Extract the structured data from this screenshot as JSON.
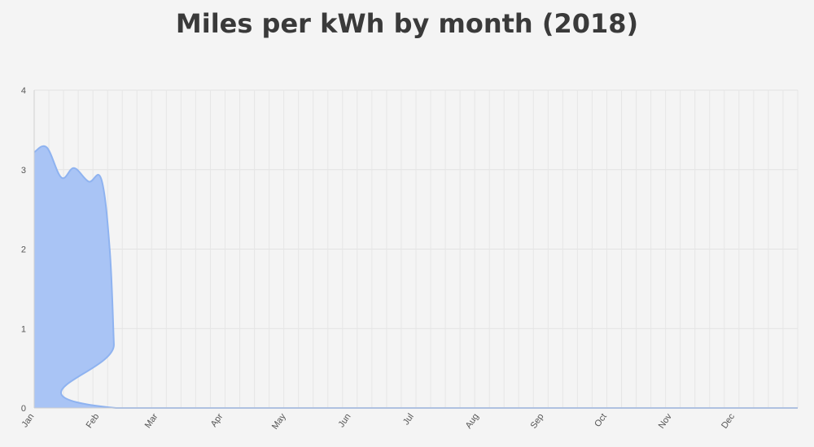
{
  "chart_data": {
    "type": "area",
    "title": "Miles per kWh by month (2018)",
    "xlabel": "",
    "ylabel": "",
    "ylim": [
      0,
      4
    ],
    "y_ticks": [
      "0",
      "1",
      "2",
      "3",
      "4"
    ],
    "x_range_days": [
      1,
      365
    ],
    "month_ticks": [
      {
        "label": "Jan",
        "day": 1
      },
      {
        "label": "Feb",
        "day": 32
      },
      {
        "label": "Mar",
        "day": 60
      },
      {
        "label": "Apr",
        "day": 91
      },
      {
        "label": "May",
        "day": 121
      },
      {
        "label": "Jun",
        "day": 152
      },
      {
        "label": "Jul",
        "day": 182
      },
      {
        "label": "Aug",
        "day": 213
      },
      {
        "label": "Sep",
        "day": 244
      },
      {
        "label": "Oct",
        "day": 274
      },
      {
        "label": "Nov",
        "day": 305
      },
      {
        "label": "Dec",
        "day": 335
      }
    ],
    "grid": true,
    "legend": "none",
    "colors": {
      "fill": "#a9c4f5",
      "stroke": "#8fb3f0"
    },
    "series": [
      {
        "points": [
          {
            "x": 1,
            "y": 3.22
          },
          {
            "x": 7,
            "y": 3.28
          },
          {
            "x": 14,
            "y": 2.9
          },
          {
            "x": 20,
            "y": 3.02
          },
          {
            "x": 27,
            "y": 2.85
          },
          {
            "x": 33,
            "y": 2.88
          },
          {
            "x": 37,
            "y": 2.0
          },
          {
            "x": 39,
            "y": 0.8
          },
          {
            "x": 40,
            "y": 0
          },
          {
            "x": 365,
            "y": 0
          }
        ]
      }
    ]
  }
}
